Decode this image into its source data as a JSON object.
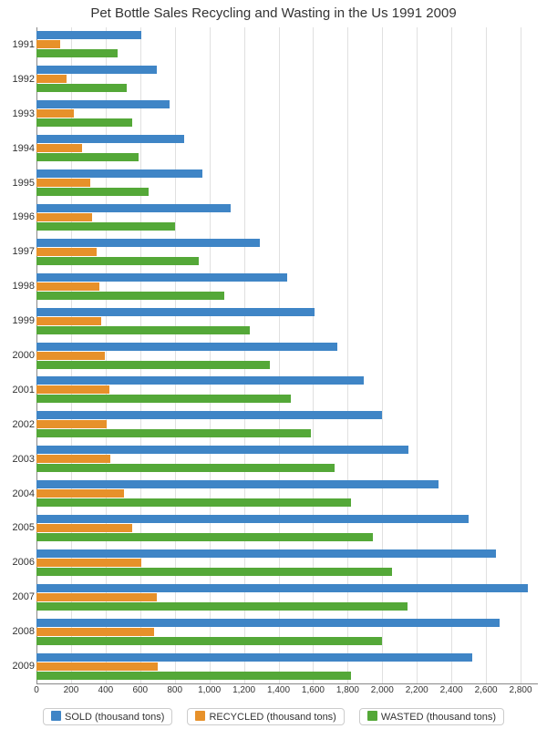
{
  "chart": {
    "type": "bar",
    "orientation": "horizontal",
    "title": "Pet Bottle Sales Recycling and Wasting in the Us 1991 2009",
    "title_fontsize": 15,
    "title_color": "#333333",
    "background_color": "#ffffff",
    "grid_color": "#e0e0e0",
    "axis_color": "#888888",
    "label_fontsize": 11,
    "tick_fontsize": 10,
    "xlim": [
      0,
      2900
    ],
    "xticks": [
      0,
      200,
      400,
      600,
      800,
      1000,
      1200,
      1400,
      1600,
      1800,
      2000,
      2200,
      2400,
      2600,
      2800
    ],
    "xtick_labels": [
      "0",
      "200",
      "400",
      "600",
      "800",
      "1,000",
      "1,200",
      "1,400",
      "1,600",
      "1,800",
      "2,000",
      "2,200",
      "2,400",
      "2,600",
      "2,800"
    ],
    "years": [
      "1991",
      "1992",
      "1993",
      "1994",
      "1995",
      "1996",
      "1997",
      "1998",
      "1999",
      "2000",
      "2001",
      "2002",
      "2003",
      "2004",
      "2005",
      "2006",
      "2007",
      "2008",
      "2009"
    ],
    "series": [
      {
        "name": "SOLD (thousand tons)",
        "color": "#3f85c6",
        "values": [
          606,
          694,
          772,
          854,
          958,
          1123,
          1290,
          1450,
          1610,
          1742,
          1892,
          1996,
          2150,
          2324,
          2500,
          2660,
          2842,
          2680,
          2520
        ]
      },
      {
        "name": "RECYCLED (thousand tons)",
        "color": "#e7912a",
        "values": [
          137,
          173,
          218,
          262,
          310,
          320,
          350,
          362,
          376,
          394,
          422,
          408,
          428,
          506,
          552,
          606,
          696,
          680,
          702
        ]
      },
      {
        "name": "WASTED (thousand tons)",
        "color": "#54a838",
        "values": [
          469,
          520,
          555,
          593,
          648,
          804,
          940,
          1085,
          1234,
          1348,
          1470,
          1588,
          1722,
          1818,
          1948,
          2054,
          2147,
          2000,
          1818
        ]
      }
    ],
    "legend_border": "#cccccc"
  }
}
